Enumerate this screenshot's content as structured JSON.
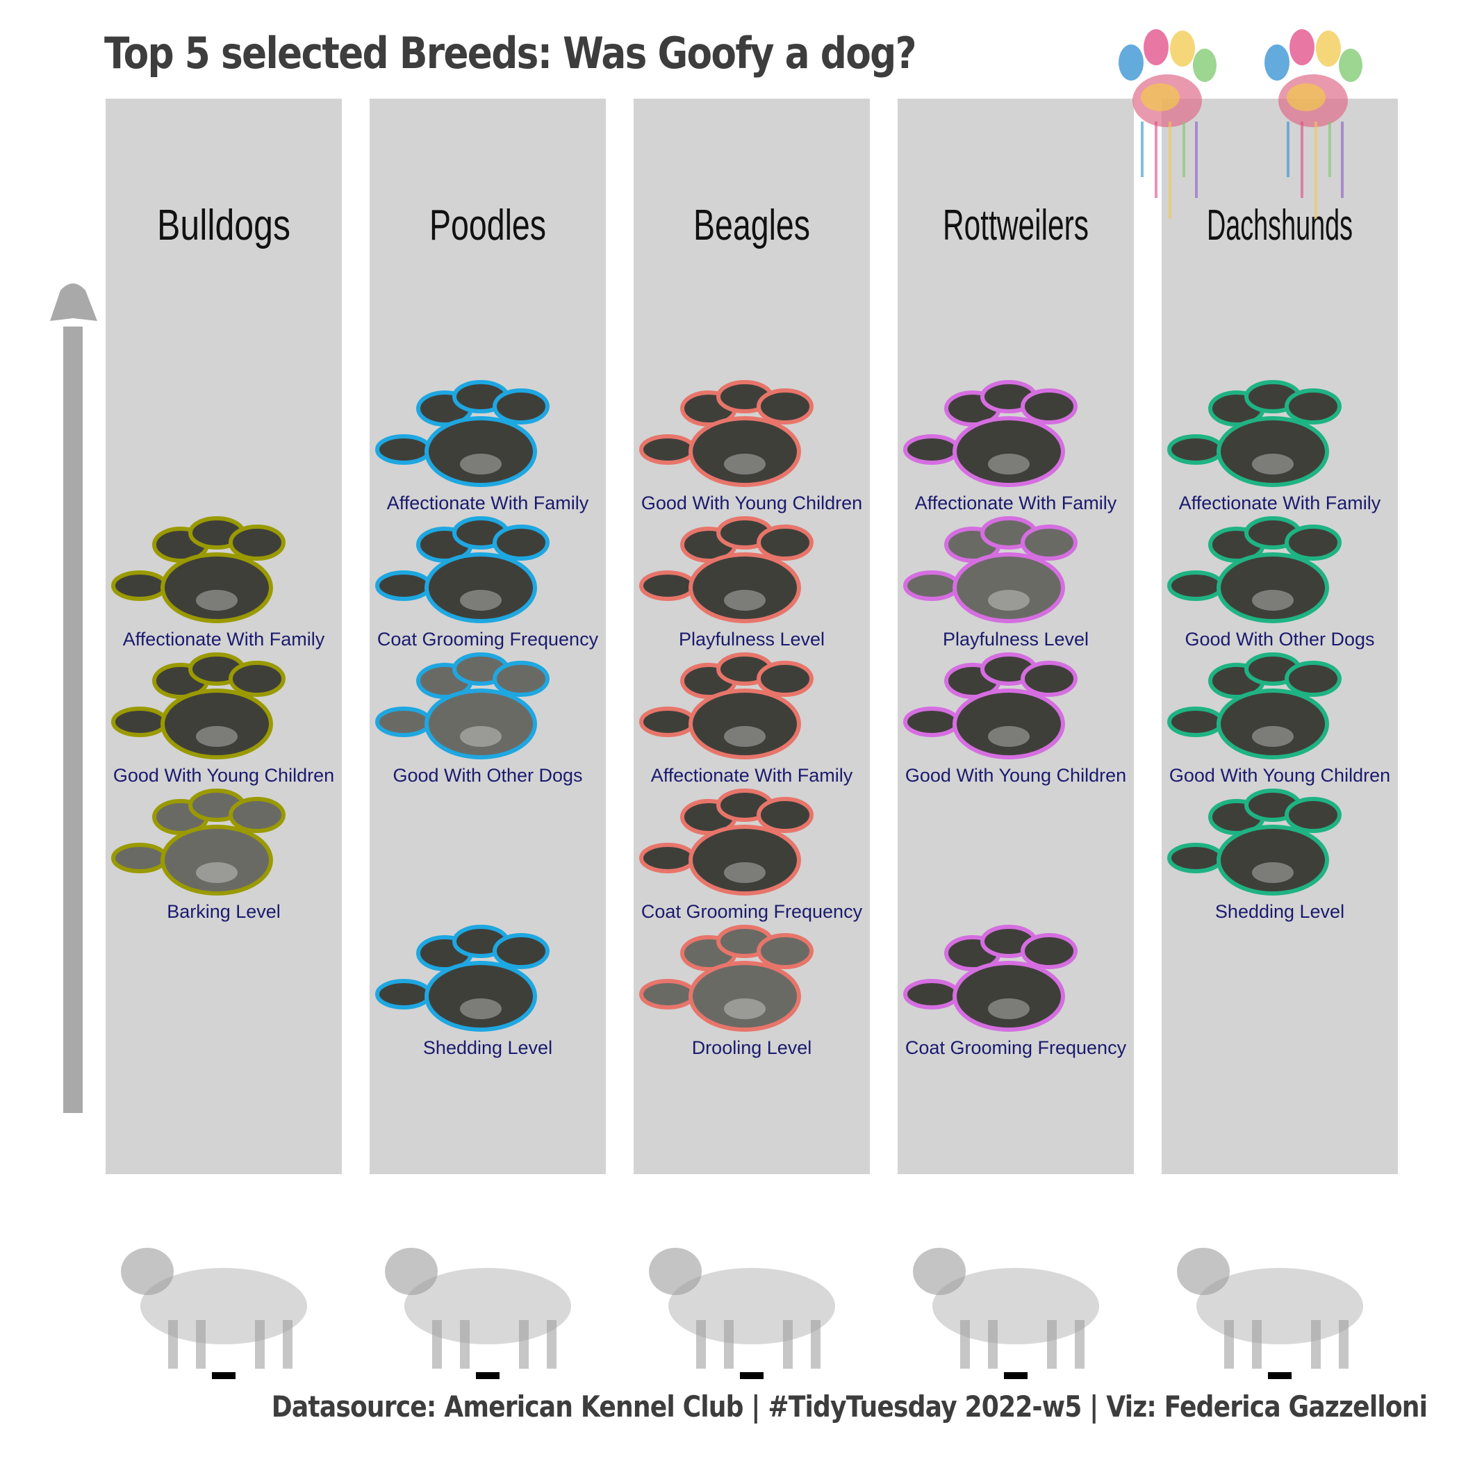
{
  "title": "Top 5 selected Breeds: Was Goofy a dog?",
  "caption": "Datasource: American Kennel Club | #TidyTuesday 2022-w5 | Viz: Federica Gazzelloni",
  "colors": {
    "panel": "#d3d3d3",
    "pad_fill": "#3f3f3a",
    "pad_fill_faded": "#6a6a65",
    "label": "#1a1a6e",
    "arrow": "#a9a9a9"
  },
  "chart_data": {
    "type": "scatter",
    "title": "Top 5 selected Breeds: Was Goofy a dog?",
    "y_order": "higher rank = higher on the page",
    "breeds": [
      {
        "name": "Bulldogs",
        "color": "#9a9a00",
        "traits": [
          {
            "label": "Affectionate With Family",
            "slot": 2,
            "faded": false
          },
          {
            "label": "Good With Young Children",
            "slot": 3,
            "faded": false
          },
          {
            "label": "Barking Level",
            "slot": 4,
            "faded": true
          }
        ]
      },
      {
        "name": "Poodles",
        "color": "#1ea7e1",
        "traits": [
          {
            "label": "Affectionate With Family",
            "slot": 1,
            "faded": false
          },
          {
            "label": "Coat Grooming Frequency",
            "slot": 2,
            "faded": false
          },
          {
            "label": "Good With Other Dogs",
            "slot": 3,
            "faded": true
          },
          {
            "label": "Shedding Level",
            "slot": 5,
            "faded": false
          }
        ]
      },
      {
        "name": "Beagles",
        "color": "#e8756a",
        "traits": [
          {
            "label": "Good With Young Children",
            "slot": 1,
            "faded": false
          },
          {
            "label": "Playfulness Level",
            "slot": 2,
            "faded": false
          },
          {
            "label": "Affectionate With Family",
            "slot": 3,
            "faded": false
          },
          {
            "label": "Coat Grooming Frequency",
            "slot": 4,
            "faded": false
          },
          {
            "label": "Drooling Level",
            "slot": 5,
            "faded": true
          }
        ]
      },
      {
        "name": "Rottweilers",
        "color": "#d56ee0",
        "traits": [
          {
            "label": "Affectionate With Family",
            "slot": 1,
            "faded": false
          },
          {
            "label": "Playfulness Level",
            "slot": 2,
            "faded": true
          },
          {
            "label": "Good With Young Children",
            "slot": 3,
            "faded": false
          },
          {
            "label": "Coat Grooming Frequency",
            "slot": 5,
            "faded": false
          }
        ]
      },
      {
        "name": "Dachshunds",
        "color": "#1fb383",
        "traits": [
          {
            "label": "Affectionate With Family",
            "slot": 1,
            "faded": false
          },
          {
            "label": "Good With Other Dogs",
            "slot": 2,
            "faded": false
          },
          {
            "label": "Good With Young Children",
            "slot": 3,
            "faded": false
          },
          {
            "label": "Shedding Level",
            "slot": 4,
            "faded": false
          }
        ]
      }
    ],
    "icons": [
      "paw-print",
      "watercolor-paw",
      "dog-illustration"
    ]
  }
}
